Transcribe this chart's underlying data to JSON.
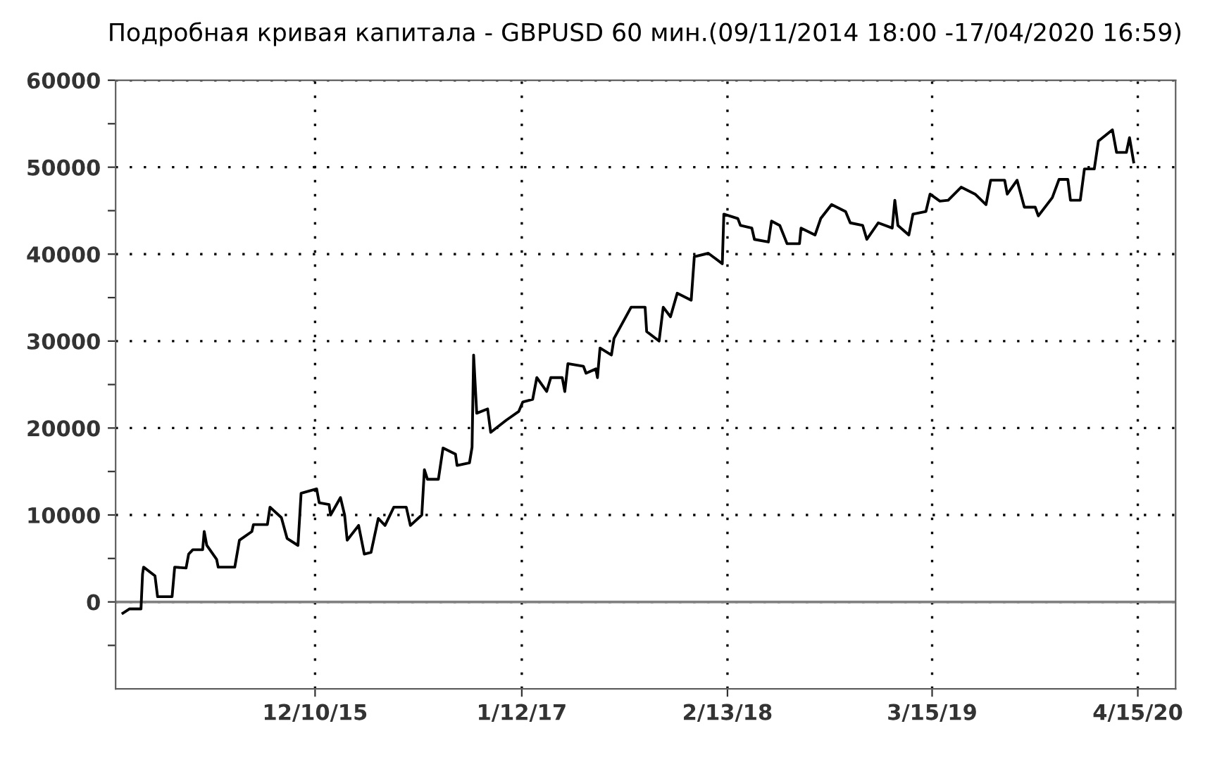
{
  "chart_data": {
    "type": "line",
    "title": "Подробная кривая капитала - GBPUSD 60 мин.(09/11/2014 18:00 -17/04/2020 16:59)",
    "series": [
      {
        "color": "#000000",
        "x": [
          "2014-12-04",
          "2014-12-17",
          "2015-01-08",
          "2015-01-11",
          "2015-01-13",
          "2015-02-04",
          "2015-02-09",
          "2015-03-09",
          "2015-03-14",
          "2015-04-05",
          "2015-04-10",
          "2015-04-18",
          "2015-05-07",
          "2015-05-10",
          "2015-05-15",
          "2015-06-03",
          "2015-06-06",
          "2015-07-08",
          "2015-07-17",
          "2015-08-10",
          "2015-08-13",
          "2015-09-09",
          "2015-09-14",
          "2015-10-06",
          "2015-10-17",
          "2015-11-07",
          "2015-11-13",
          "2015-12-13",
          "2015-12-18",
          "2016-01-06",
          "2016-01-09",
          "2016-01-28",
          "2016-02-05",
          "2016-02-10",
          "2016-03-03",
          "2016-03-14",
          "2016-03-27",
          "2016-04-10",
          "2016-04-23",
          "2016-05-10",
          "2016-06-03",
          "2016-06-11",
          "2016-07-03",
          "2016-07-08",
          "2016-07-14",
          "2016-08-04",
          "2016-08-13",
          "2016-09-06",
          "2016-09-09",
          "2016-10-03",
          "2016-10-08",
          "2016-10-11",
          "2016-10-17",
          "2016-11-07",
          "2016-11-13",
          "2016-12-13",
          "2017-01-06",
          "2017-01-14",
          "2017-02-02",
          "2017-02-10",
          "2017-03-01",
          "2017-03-09",
          "2017-03-31",
          "2017-04-05",
          "2017-04-11",
          "2017-05-11",
          "2017-05-16",
          "2017-06-04",
          "2017-06-07",
          "2017-06-12",
          "2017-07-04",
          "2017-07-09",
          "2017-08-11",
          "2017-09-07",
          "2017-09-10",
          "2017-10-04",
          "2017-10-12",
          "2017-10-26",
          "2017-11-08",
          "2017-12-05",
          "2017-12-11",
          "2018-01-07",
          "2018-02-03",
          "2018-02-06",
          "2018-03-05",
          "2018-03-10",
          "2018-04-01",
          "2018-04-06",
          "2018-05-03",
          "2018-05-09",
          "2018-05-25",
          "2018-06-08",
          "2018-07-02",
          "2018-07-05",
          "2018-08-01",
          "2018-08-12",
          "2018-09-02",
          "2018-09-29",
          "2018-10-08",
          "2018-11-01",
          "2018-11-09",
          "2018-12-01",
          "2018-12-28",
          "2019-01-02",
          "2019-01-08",
          "2019-01-29",
          "2019-02-06",
          "2019-03-03",
          "2019-03-11",
          "2019-03-30",
          "2019-04-15",
          "2019-05-10",
          "2019-06-06",
          "2019-06-27",
          "2019-07-06",
          "2019-08-02",
          "2019-08-07",
          "2019-08-26",
          "2019-09-09",
          "2019-09-30",
          "2019-10-06",
          "2019-11-02",
          "2019-11-15",
          "2019-12-02",
          "2019-12-07",
          "2019-12-26",
          "2020-01-03",
          "2020-01-22",
          "2020-01-30",
          "2020-02-26",
          "2020-03-05",
          "2020-03-24",
          "2020-03-30",
          "2020-04-07"
        ],
        "values": [
          -1300,
          -800,
          -800,
          3200,
          4000,
          3000,
          600,
          600,
          4000,
          3900,
          5500,
          6000,
          6000,
          8100,
          6500,
          4900,
          4000,
          4000,
          7100,
          8100,
          8900,
          8900,
          10900,
          9700,
          7300,
          6500,
          12500,
          13000,
          11400,
          11200,
          10000,
          12000,
          10000,
          7100,
          8800,
          5500,
          5700,
          9600,
          8800,
          10900,
          10900,
          8800,
          10000,
          15200,
          14100,
          14100,
          17700,
          17000,
          15700,
          16000,
          17800,
          28400,
          21700,
          22200,
          19500,
          20900,
          21900,
          23000,
          23300,
          25800,
          24200,
          25800,
          25800,
          24200,
          27400,
          27100,
          26300,
          26800,
          25800,
          29200,
          28400,
          30300,
          33900,
          33900,
          31100,
          30000,
          33900,
          32800,
          35500,
          34700,
          39700,
          40100,
          38900,
          44600,
          44100,
          43300,
          43000,
          41700,
          41400,
          43800,
          43300,
          41200,
          41200,
          43000,
          42200,
          44100,
          45700,
          44900,
          43600,
          43300,
          41700,
          43600,
          43000,
          46200,
          43300,
          42200,
          44600,
          44900,
          46900,
          46100,
          46200,
          47700,
          46900,
          45700,
          48500,
          48500,
          46900,
          48500,
          45400,
          45400,
          44400,
          46500,
          48600,
          48600,
          46200,
          46200,
          49800,
          49800,
          53000,
          54300,
          51700,
          51700,
          53400,
          50600
        ]
      }
    ],
    "xlim": [
      "2014-11-20",
      "2020-06-27"
    ],
    "xticks": [
      {
        "value": "2015-12-10",
        "label": "12/10/15"
      },
      {
        "value": "2017-01-12",
        "label": "1/12/17"
      },
      {
        "value": "2018-02-13",
        "label": "2/13/18"
      },
      {
        "value": "2019-03-15",
        "label": "3/15/19"
      },
      {
        "value": "2020-04-15",
        "label": "4/15/20"
      }
    ],
    "ylim": [
      -10000,
      60000
    ],
    "yticks": [
      {
        "value": -5000,
        "label": null
      },
      0,
      {
        "value": 5000,
        "label": null
      },
      10000,
      {
        "value": 15000,
        "label": null
      },
      20000,
      {
        "value": 25000,
        "label": null
      },
      30000,
      {
        "value": 35000,
        "label": null
      },
      40000,
      {
        "value": 45000,
        "label": null
      },
      50000,
      {
        "value": 55000,
        "label": null
      },
      60000
    ],
    "ref_lines": [
      {
        "axis": "y",
        "value": 0,
        "color": "#808080",
        "line_style": "solid"
      }
    ],
    "grid": true,
    "marker": "none",
    "line_style": "solid",
    "legend": false
  }
}
